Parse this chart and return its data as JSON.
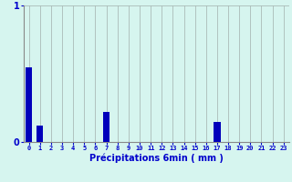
{
  "hours": [
    0,
    1,
    2,
    3,
    4,
    5,
    6,
    7,
    8,
    9,
    10,
    11,
    12,
    13,
    14,
    15,
    16,
    17,
    18,
    19,
    20,
    21,
    22,
    23
  ],
  "values": [
    0.55,
    0.12,
    0,
    0,
    0,
    0,
    0,
    0.22,
    0,
    0,
    0,
    0,
    0,
    0,
    0,
    0,
    0,
    0.15,
    0,
    0,
    0,
    0,
    0,
    0
  ],
  "bar_color": "#0000bb",
  "background_color": "#d6f5ef",
  "grid_color": "#aabbb8",
  "axis_color": "#888888",
  "text_color": "#0000cc",
  "xlabel": "Précipitations 6min ( mm )",
  "ylim": [
    0,
    1.0
  ],
  "xlim": [
    -0.5,
    23.5
  ],
  "bar_width": 0.6
}
